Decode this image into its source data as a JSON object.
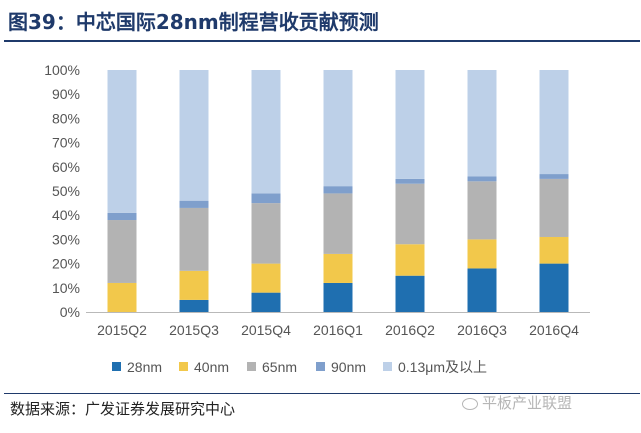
{
  "figure": {
    "title": "图39：中芯国际28nm制程营收贡献预测",
    "source": "数据来源：广发证券发展研究中心",
    "watermark": "平板产业联盟"
  },
  "colors": {
    "28nm": "#1f6fb0",
    "40nm": "#f2c84b",
    "65nm": "#b3b3b3",
    "90nm": "#7f9fcc",
    "0.13um": "#bdd0e8",
    "title": "#1f3a6b",
    "axis": "#b9b9b9"
  },
  "chart_data": {
    "type": "bar",
    "stacked": true,
    "percent": true,
    "title": "中芯国际28nm制程营收贡献预测",
    "xlabel": "",
    "ylabel": "",
    "ylim": [
      0,
      100
    ],
    "yticks": [
      "0%",
      "10%",
      "20%",
      "30%",
      "40%",
      "50%",
      "60%",
      "70%",
      "80%",
      "90%",
      "100%"
    ],
    "categories": [
      "2015Q2",
      "2015Q3",
      "2015Q4",
      "2016Q1",
      "2016Q2",
      "2016Q3",
      "2016Q4"
    ],
    "series": [
      {
        "name": "28nm",
        "key": "28nm",
        "values": [
          0,
          5,
          8,
          12,
          15,
          18,
          20
        ]
      },
      {
        "name": "40nm",
        "key": "40nm",
        "values": [
          12,
          12,
          12,
          12,
          13,
          12,
          11
        ]
      },
      {
        "name": "65nm",
        "key": "65nm",
        "values": [
          26,
          26,
          25,
          25,
          25,
          24,
          24
        ]
      },
      {
        "name": "90nm",
        "key": "90nm",
        "values": [
          3,
          3,
          4,
          3,
          2,
          2,
          2
        ]
      },
      {
        "name": "0.13μm及以上",
        "key": "0.13um",
        "values": [
          59,
          54,
          51,
          48,
          45,
          44,
          43
        ]
      }
    ],
    "legend_position": "bottom",
    "grid": false
  }
}
